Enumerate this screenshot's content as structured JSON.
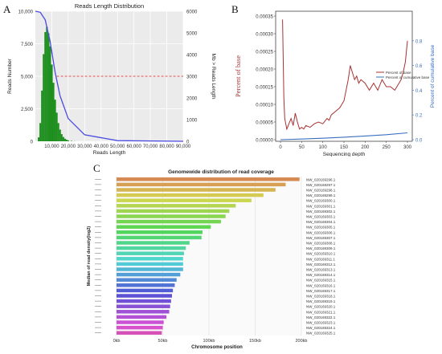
{
  "panels": {
    "a": "A",
    "b": "B",
    "c": "C"
  },
  "chart_data": [
    {
      "type": "bar",
      "title": "Reads Length Distribution",
      "xlabel": "Reads Length",
      "ylabel": "Reads Number",
      "ylabel_right": "Mb > Reads Length",
      "xlim": [
        0,
        90000
      ],
      "ylim": [
        0,
        10000
      ],
      "ylim_right": [
        0,
        6000
      ],
      "x_ticks": [
        "10,000",
        "20,000",
        "30,000",
        "40,000",
        "50,000",
        "60,000",
        "70,000",
        "80,000",
        "90,000"
      ],
      "y_ticks": [
        "0",
        "2,500",
        "5,000",
        "7,500",
        "10,000"
      ],
      "y_ticks_right": [
        "0",
        "1000",
        "2000",
        "3000",
        "4000",
        "5000",
        "6000"
      ],
      "hist_x": [
        2000,
        3000,
        4000,
        5000,
        6000,
        7000,
        8000,
        9000,
        10000,
        11000,
        12000,
        13000,
        14000,
        15000,
        16000,
        17000,
        18000,
        19000,
        20000,
        22000,
        24000
      ],
      "hist_y": [
        300,
        1400,
        3900,
        6700,
        8400,
        8800,
        8300,
        7300,
        5900,
        4500,
        3200,
        2200,
        1400,
        900,
        550,
        330,
        200,
        120,
        70,
        30,
        10
      ],
      "cumulative_mb": {
        "x": [
          0,
          3000,
          6000,
          9000,
          12000,
          15000,
          20000,
          30000,
          50000,
          90000
        ],
        "y": [
          6000,
          5950,
          5600,
          4600,
          3200,
          2100,
          1050,
          300,
          30,
          0
        ]
      },
      "threshold_right": 3000,
      "colors": {
        "bars": "#1f8f1f",
        "curve": "#4a4ae0",
        "threshold": "#e05050"
      }
    },
    {
      "type": "line",
      "xlabel": "Sequencing depth",
      "ylabel": "Percent of base",
      "ylabel_right": "Percent of cumulative base",
      "xlim": [
        0,
        300
      ],
      "ylim": [
        0,
        0.00035
      ],
      "ylim_right": [
        0,
        1.0
      ],
      "x_ticks": [
        "0",
        "50",
        "100",
        "150",
        "200",
        "250",
        "300"
      ],
      "y_ticks": [
        "0.00000",
        "0.00005",
        "0.00010",
        "0.00015",
        "0.00020",
        "0.00025",
        "0.00030",
        "0.00035"
      ],
      "y_ticks_right": [
        "0.0",
        "0.2",
        "0.4",
        "0.6",
        "0.8"
      ],
      "series": [
        {
          "name": "Percent of base",
          "x": [
            5,
            8,
            10,
            15,
            20,
            25,
            30,
            35,
            40,
            45,
            50,
            55,
            60,
            70,
            80,
            90,
            100,
            110,
            115,
            120,
            130,
            140,
            150,
            160,
            165,
            170,
            175,
            180,
            185,
            190,
            200,
            210,
            220,
            230,
            240,
            250,
            260,
            270,
            280,
            285,
            290,
            295,
            300
          ],
          "y": [
            0.00034,
            0.00012,
            6e-05,
            3e-05,
            4.5e-05,
            6e-05,
            4e-05,
            7.5e-05,
            5e-05,
            3e-05,
            3.5e-05,
            3e-05,
            4e-05,
            3.5e-05,
            4.5e-05,
            5e-05,
            4.5e-05,
            6e-05,
            5.5e-05,
            7e-05,
            8e-05,
            9e-05,
            0.00011,
            0.00017,
            0.00021,
            0.00019,
            0.00017,
            0.00018,
            0.00016,
            0.00017,
            0.00016,
            0.00014,
            0.00016,
            0.00014,
            0.00017,
            0.00015,
            0.00015,
            0.00014,
            0.00016,
            0.00017,
            0.00019,
            0.00022,
            0.00028
          ]
        },
        {
          "name": "Percent of cumulative base",
          "x": [
            0,
            50,
            100,
            150,
            200,
            250,
            300
          ],
          "y": [
            0.0,
            0.005,
            0.012,
            0.02,
            0.03,
            0.04,
            0.055
          ]
        }
      ],
      "colors": {
        "base": "#a83232",
        "cumulative": "#3a6fc0"
      }
    },
    {
      "type": "bar",
      "title": "Genomewide distribution of read coverage",
      "xlabel": "Chromosome position",
      "ylabel": "Median of read density(log2)",
      "xlim": [
        0,
        200000
      ],
      "x_ticks": [
        "0kb",
        "50kb",
        "100kb",
        "150kb",
        "200kb"
      ],
      "categories": [
        "NW_020169296.1",
        "NW_020169297.1",
        "NW_020169298.1",
        "NW_020169299.1",
        "NW_020169300.1",
        "NW_020169301.1",
        "NW_020169302.1",
        "NW_020169303.1",
        "NW_020169304.1",
        "NW_020169305.1",
        "NW_020169306.1",
        "NW_020169307.1",
        "NW_020169308.1",
        "NW_020169309.1",
        "NW_020169310.1",
        "NW_020169311.1",
        "NW_020169312.1",
        "NW_020169313.1",
        "NW_020169314.1",
        "NW_020169315.1",
        "NW_020169316.1",
        "NW_020169317.1",
        "NW_020169318.1",
        "NW_020169319.1",
        "NW_020169320.1",
        "NW_020169321.1",
        "NW_020169322.1",
        "NW_020169323.1",
        "NW_020169324.1",
        "NW_020169325.1"
      ],
      "values": [
        198000,
        183000,
        172000,
        159000,
        146000,
        129000,
        122000,
        118000,
        113000,
        102000,
        93000,
        92000,
        79000,
        75000,
        73000,
        72000,
        72000,
        72000,
        69000,
        65000,
        63000,
        61000,
        60000,
        59000,
        58000,
        57000,
        54000,
        51000,
        50000,
        49000
      ]
    }
  ]
}
